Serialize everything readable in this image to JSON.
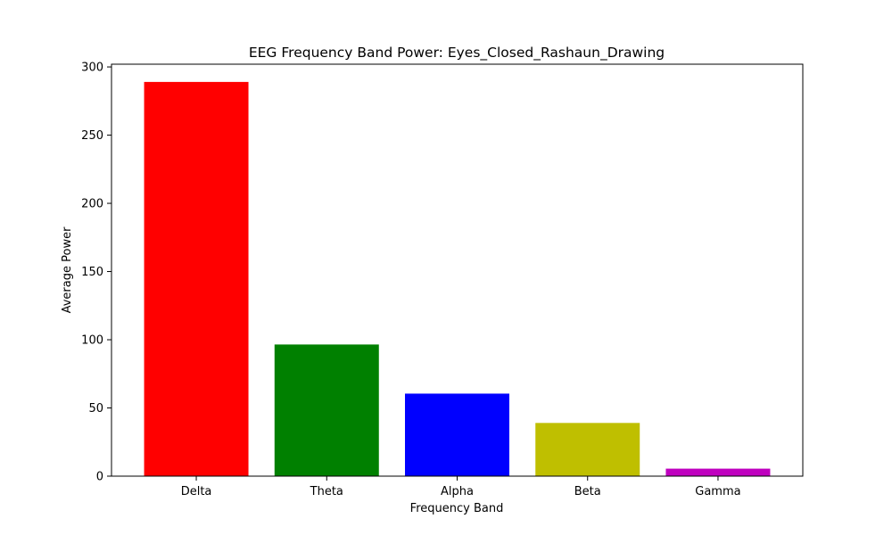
{
  "chart_data": {
    "type": "bar",
    "title": "EEG Frequency Band Power: Eyes_Closed_Rashaun_Drawing",
    "xlabel": "Frequency Band",
    "ylabel": "Average Power",
    "categories": [
      "Delta",
      "Theta",
      "Alpha",
      "Beta",
      "Gamma"
    ],
    "values": [
      289,
      96.5,
      60.5,
      39,
      5.5
    ],
    "colors": [
      "#ff0000",
      "#008000",
      "#0000ff",
      "#bfbf00",
      "#bf00bf"
    ],
    "ylim": [
      0,
      302
    ],
    "yticks": [
      0,
      50,
      100,
      150,
      200,
      250,
      300
    ],
    "grid": false,
    "legend": "none"
  }
}
